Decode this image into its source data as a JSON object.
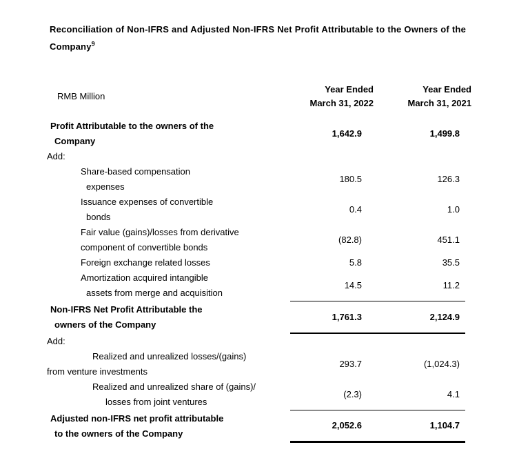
{
  "page": {
    "title": "Reconciliation of Non-IFRS and Adjusted Non-IFRS Net Profit Attributable to the Owners of the Company",
    "title_superscript": "9"
  },
  "colors": {
    "text": "#000000",
    "background": "#ffffff"
  },
  "table": {
    "unit_label": "RMB Million",
    "columns": [
      {
        "line1": "Year Ended",
        "line2": "March 31, 2022"
      },
      {
        "line1": "Year Ended",
        "line2": "March 31, 2021"
      }
    ],
    "rows": [
      {
        "type": "data",
        "bold": true,
        "rule": "none",
        "lines": [
          {
            "text": "Profit Attributable to the owners of the",
            "indent": 1
          },
          {
            "text": "Company",
            "indent": 2
          }
        ],
        "values": [
          "1,642.9",
          "1,499.8"
        ]
      },
      {
        "type": "section",
        "bold": false,
        "rule": "none",
        "lines": [
          {
            "text": "Add:",
            "indent": 0
          }
        ],
        "values": null
      },
      {
        "type": "data",
        "bold": false,
        "rule": "none",
        "lines": [
          {
            "text": "Share-based compensation",
            "indent": 4
          },
          {
            "text": "expenses",
            "indent": 5
          }
        ],
        "values": [
          "180.5",
          "126.3"
        ]
      },
      {
        "type": "data",
        "bold": false,
        "rule": "none",
        "lines": [
          {
            "text": "Issuance expenses of convertible",
            "indent": 4
          },
          {
            "text": "bonds",
            "indent": 5
          }
        ],
        "values": [
          "0.4",
          "1.0"
        ]
      },
      {
        "type": "data",
        "bold": false,
        "rule": "none",
        "lines": [
          {
            "text": "Fair value (gains)/losses from derivative",
            "indent": 4
          },
          {
            "text": "component of convertible bonds",
            "indent": 4
          }
        ],
        "values": [
          "(82.8)",
          "451.1"
        ]
      },
      {
        "type": "data",
        "bold": false,
        "rule": "none",
        "lines": [
          {
            "text": "Foreign exchange related losses",
            "indent": 4
          }
        ],
        "values": [
          "5.8",
          "35.5"
        ]
      },
      {
        "type": "data",
        "bold": false,
        "rule": "none",
        "lines": [
          {
            "text": "Amortization acquired intangible",
            "indent": 4
          },
          {
            "text": "assets from merge and acquisition",
            "indent": 5
          }
        ],
        "values": [
          "14.5",
          "11.2"
        ]
      },
      {
        "type": "data",
        "bold": true,
        "rule": "subtotal",
        "lines": [
          {
            "text": "Non-IFRS Net Profit Attributable the",
            "indent": 1
          },
          {
            "text": "owners of the Company",
            "indent": 2
          }
        ],
        "values": [
          "1,761.3",
          "2,124.9"
        ]
      },
      {
        "type": "section",
        "bold": false,
        "rule": "none",
        "lines": [
          {
            "text": "Add:",
            "indent": 0
          }
        ],
        "values": null
      },
      {
        "type": "data",
        "bold": false,
        "rule": "none",
        "lines": [
          {
            "text": "Realized and unrealized losses/(gains)",
            "indent": 6
          },
          {
            "text": "from venture investments",
            "indent": 0
          }
        ],
        "values": [
          "293.7",
          "(1,024.3)"
        ]
      },
      {
        "type": "data",
        "bold": false,
        "rule": "none",
        "lines": [
          {
            "text": "Realized and unrealized share of (gains)/",
            "indent": 6
          },
          {
            "text": "losses from joint ventures",
            "indent": 7
          }
        ],
        "values": [
          "(2.3)",
          "4.1"
        ]
      },
      {
        "type": "data",
        "bold": true,
        "rule": "total",
        "lines": [
          {
            "text": "Adjusted non-IFRS net profit attributable",
            "indent": 1
          },
          {
            "text": "to the owners of the Company",
            "indent": 2
          }
        ],
        "values": [
          "2,052.6",
          "1,104.7"
        ]
      }
    ]
  }
}
